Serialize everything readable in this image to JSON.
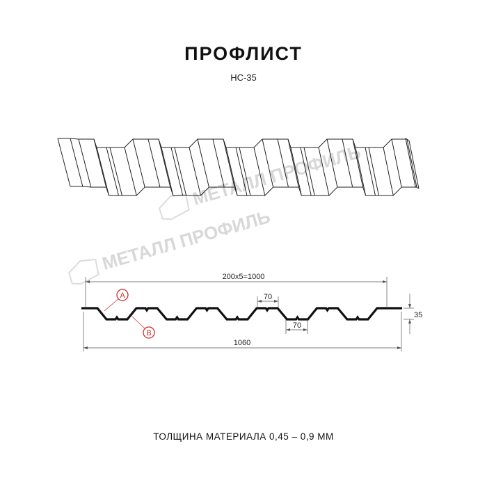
{
  "title": "ПРОФЛИСТ",
  "subtitle": "НС-35",
  "footer": "ТОЛЩИНА МАТЕРИАЛА 0,45 – 0,9 ММ",
  "watermark": "МЕТАЛЛ ПРОФИЛЬ",
  "dimensions": {
    "pitch_total": "200x5=1000",
    "full_width": "1060",
    "top_width": "70",
    "bottom_width": "70",
    "height": "35"
  },
  "callouts": {
    "a": "A",
    "b": "B"
  },
  "colors": {
    "profile": "#111111",
    "callout": "#d22a2a",
    "watermark": "#d8d8d8"
  }
}
